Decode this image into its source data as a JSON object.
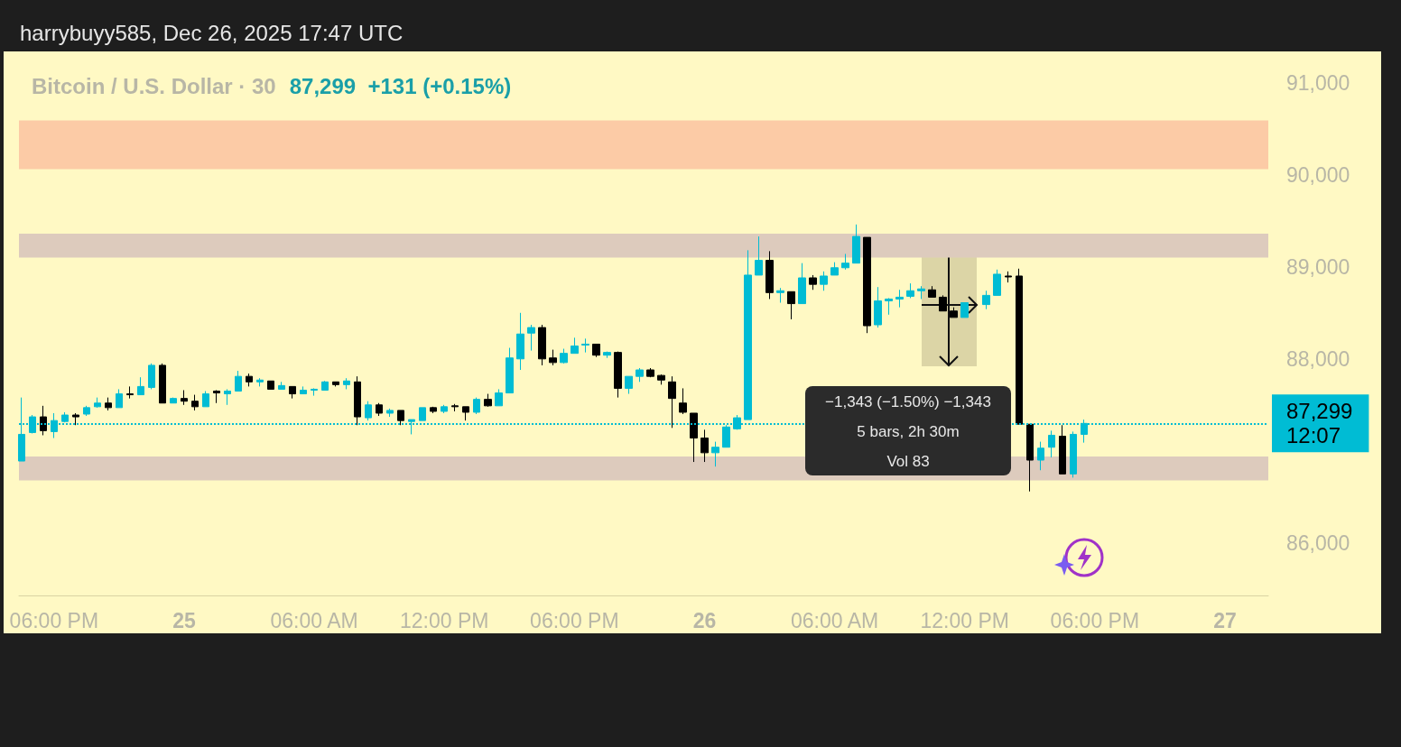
{
  "chart_data": {
    "type": "candlestick",
    "title": "Bitcoin / U.S. Dollar · 30",
    "subtitle": "87,299  +131 (+0.15%)",
    "annotations": [
      "harrybuyy585, Dec 26, 2025 17:47 UTC",
      "12:07",
      "−1,343 (−1.50%) −1,343",
      "5 bars, 2h 30m",
      "Vol 83"
    ],
    "x": [
      "2025-12-24T16:30",
      "2025-12-24T17:00",
      "2025-12-24T17:30",
      "2025-12-24T18:00",
      "2025-12-24T18:30",
      "2025-12-24T19:00",
      "2025-12-24T19:30",
      "2025-12-24T20:00",
      "2025-12-24T20:30",
      "2025-12-24T21:00",
      "2025-12-24T21:30",
      "2025-12-24T22:00",
      "2025-12-24T22:30",
      "2025-12-24T23:00",
      "2025-12-24T23:30",
      "2025-12-25T00:00",
      "2025-12-25T00:30",
      "2025-12-25T01:00",
      "2025-12-25T01:30",
      "2025-12-25T02:00",
      "2025-12-25T02:30",
      "2025-12-25T03:00",
      "2025-12-25T03:30",
      "2025-12-25T04:00",
      "2025-12-25T04:30",
      "2025-12-25T05:00",
      "2025-12-25T05:30",
      "2025-12-25T06:00",
      "2025-12-25T06:30",
      "2025-12-25T07:00",
      "2025-12-25T07:30",
      "2025-12-25T08:00",
      "2025-12-25T08:30",
      "2025-12-25T09:00",
      "2025-12-25T09:30",
      "2025-12-25T10:00",
      "2025-12-25T10:30",
      "2025-12-25T11:00",
      "2025-12-25T11:30",
      "2025-12-25T12:00",
      "2025-12-25T12:30",
      "2025-12-25T13:00",
      "2025-12-25T13:30",
      "2025-12-25T14:00",
      "2025-12-25T14:30",
      "2025-12-25T15:00",
      "2025-12-25T15:30",
      "2025-12-25T16:00",
      "2025-12-25T16:30",
      "2025-12-25T17:00",
      "2025-12-25T17:30",
      "2025-12-25T18:00",
      "2025-12-25T18:30",
      "2025-12-25T19:00",
      "2025-12-25T19:30",
      "2025-12-25T20:00",
      "2025-12-25T20:30",
      "2025-12-25T21:00",
      "2025-12-25T21:30",
      "2025-12-25T22:00",
      "2025-12-25T22:30",
      "2025-12-25T23:00",
      "2025-12-25T23:30",
      "2025-12-26T00:00",
      "2025-12-26T00:30",
      "2025-12-26T01:00",
      "2025-12-26T01:30",
      "2025-12-26T02:00",
      "2025-12-26T02:30",
      "2025-12-26T03:00",
      "2025-12-26T03:30",
      "2025-12-26T04:00",
      "2025-12-26T04:30",
      "2025-12-26T05:00",
      "2025-12-26T05:30",
      "2025-12-26T06:00",
      "2025-12-26T06:30",
      "2025-12-26T07:00",
      "2025-12-26T07:30",
      "2025-12-26T08:00",
      "2025-12-26T08:30",
      "2025-12-26T09:00",
      "2025-12-26T09:30",
      "2025-12-26T10:00",
      "2025-12-26T10:30",
      "2025-12-26T11:00",
      "2025-12-26T11:30",
      "2025-12-26T12:00",
      "2025-12-26T13:00",
      "2025-12-26T13:30",
      "2025-12-26T14:00",
      "2025-12-26T14:30",
      "2025-12-26T15:00",
      "2025-12-26T15:30",
      "2025-12-26T16:00",
      "2025-12-26T16:30",
      "2025-12-26T17:00",
      "2025-12-26T17:30"
    ],
    "ohlc": [
      [
        86890,
        87580,
        86890,
        87180
      ],
      [
        87200,
        87390,
        87190,
        87370
      ],
      [
        87370,
        87490,
        87170,
        87220
      ],
      [
        87210,
        87410,
        87140,
        87330
      ],
      [
        87320,
        87420,
        87310,
        87390
      ],
      [
        87390,
        87410,
        87280,
        87370
      ],
      [
        87400,
        87490,
        87380,
        87470
      ],
      [
        87480,
        87580,
        87470,
        87520
      ],
      [
        87520,
        87580,
        87440,
        87470
      ],
      [
        87470,
        87670,
        87470,
        87620
      ],
      [
        87620,
        87700,
        87570,
        87610
      ],
      [
        87610,
        87800,
        87610,
        87700
      ],
      [
        87690,
        87950,
        87670,
        87930
      ],
      [
        87930,
        87950,
        87520,
        87520
      ],
      [
        87520,
        87580,
        87520,
        87570
      ],
      [
        87570,
        87660,
        87500,
        87540
      ],
      [
        87540,
        87610,
        87440,
        87480
      ],
      [
        87480,
        87650,
        87480,
        87620
      ],
      [
        87650,
        87660,
        87520,
        87630
      ],
      [
        87620,
        87670,
        87500,
        87650
      ],
      [
        87650,
        87870,
        87650,
        87810
      ],
      [
        87810,
        87840,
        87700,
        87750
      ],
      [
        87750,
        87790,
        87700,
        87770
      ],
      [
        87760,
        87760,
        87670,
        87670
      ],
      [
        87670,
        87750,
        87670,
        87710
      ],
      [
        87700,
        87700,
        87570,
        87620
      ],
      [
        87620,
        87700,
        87620,
        87660
      ],
      [
        87660,
        87680,
        87600,
        87670
      ],
      [
        87660,
        87760,
        87660,
        87750
      ],
      [
        87750,
        87750,
        87700,
        87720
      ],
      [
        87720,
        87790,
        87670,
        87760
      ],
      [
        87750,
        87810,
        87280,
        87370
      ],
      [
        87360,
        87540,
        87330,
        87500
      ],
      [
        87500,
        87520,
        87380,
        87410
      ],
      [
        87410,
        87460,
        87370,
        87440
      ],
      [
        87440,
        87440,
        87280,
        87330
      ],
      [
        87320,
        87340,
        87180,
        87340
      ],
      [
        87330,
        87470,
        87330,
        87470
      ],
      [
        87470,
        87480,
        87410,
        87430
      ],
      [
        87430,
        87500,
        87410,
        87480
      ],
      [
        87490,
        87510,
        87430,
        87480
      ],
      [
        87480,
        87480,
        87330,
        87420
      ],
      [
        87420,
        87580,
        87400,
        87560
      ],
      [
        87560,
        87620,
        87480,
        87490
      ],
      [
        87490,
        87670,
        87490,
        87630
      ],
      [
        87630,
        88120,
        87630,
        88010
      ],
      [
        88000,
        88500,
        87880,
        88270
      ],
      [
        88280,
        88370,
        88090,
        88340
      ],
      [
        88340,
        88370,
        87930,
        88000
      ],
      [
        88010,
        88100,
        87930,
        87960
      ],
      [
        87960,
        88110,
        87950,
        88060
      ],
      [
        88060,
        88230,
        88060,
        88140
      ],
      [
        88150,
        88220,
        88070,
        88160
      ],
      [
        88160,
        88160,
        88020,
        88040
      ],
      [
        88040,
        88080,
        88010,
        88070
      ],
      [
        88070,
        88080,
        87580,
        87680
      ],
      [
        87680,
        87810,
        87620,
        87810
      ],
      [
        87810,
        87900,
        87750,
        87880
      ],
      [
        87880,
        87900,
        87800,
        87810
      ],
      [
        87820,
        87830,
        87720,
        87770
      ],
      [
        87750,
        87810,
        87250,
        87570
      ],
      [
        87520,
        87680,
        87400,
        87420
      ],
      [
        87410,
        87410,
        86880,
        87140
      ],
      [
        87140,
        87230,
        86880,
        86980
      ],
      [
        86980,
        87100,
        86830,
        87040
      ],
      [
        87040,
        87280,
        87040,
        87260
      ],
      [
        87240,
        87390,
        87230,
        87360
      ],
      [
        87340,
        89180,
        87340,
        88910
      ],
      [
        88910,
        89330,
        88910,
        89070
      ],
      [
        89070,
        89170,
        88650,
        88720
      ],
      [
        88720,
        88770,
        88610,
        88740
      ],
      [
        88730,
        88730,
        88430,
        88600
      ],
      [
        88600,
        89040,
        88600,
        88880
      ],
      [
        88880,
        88910,
        88750,
        88810
      ],
      [
        88810,
        88950,
        88740,
        88900
      ],
      [
        88910,
        89050,
        88910,
        88990
      ],
      [
        88990,
        89140,
        88970,
        89040
      ],
      [
        89040,
        89460,
        89040,
        89330
      ],
      [
        89320,
        89320,
        88280,
        88360
      ],
      [
        88370,
        88780,
        88340,
        88630
      ],
      [
        88630,
        88660,
        88480,
        88650
      ],
      [
        88650,
        88750,
        88560,
        88670
      ],
      [
        88680,
        88820,
        88660,
        88740
      ],
      [
        88740,
        88790,
        88650,
        88760
      ],
      [
        88750,
        88790,
        88670,
        88670
      ],
      [
        88670,
        88690,
        88520,
        88520
      ],
      [
        88520,
        88560,
        88450,
        88450
      ],
      [
        88450,
        88610,
        88450,
        88610
      ],
      [
        88590,
        88740,
        88540,
        88690
      ],
      [
        88690,
        88970,
        88690,
        88920
      ],
      [
        88900,
        88950,
        88830,
        88890
      ],
      [
        88900,
        88980,
        87290,
        87290
      ],
      [
        87290,
        87290,
        86560,
        86900
      ],
      [
        86900,
        87100,
        86790,
        87030
      ],
      [
        87040,
        87220,
        86930,
        87170
      ],
      [
        87160,
        87280,
        86750,
        86750
      ],
      [
        86750,
        87210,
        86710,
        87180
      ],
      [
        87180,
        87340,
        87090,
        87299
      ]
    ],
    "colors": [
      "#00bcd4",
      "#00bcd4",
      "#000000",
      "#00bcd4",
      "#00bcd4",
      "#000000",
      "#00bcd4",
      "#00bcd4",
      "#000000",
      "#00bcd4",
      "#000000",
      "#00bcd4",
      "#00bcd4",
      "#000000",
      "#00bcd4",
      "#000000",
      "#000000",
      "#00bcd4",
      "#000000",
      "#00bcd4",
      "#00bcd4",
      "#000000",
      "#00bcd4",
      "#000000",
      "#00bcd4",
      "#000000",
      "#00bcd4",
      "#00bcd4",
      "#00bcd4",
      "#000000",
      "#00bcd4",
      "#000000",
      "#00bcd4",
      "#000000",
      "#00bcd4",
      "#000000",
      "#00bcd4",
      "#00bcd4",
      "#000000",
      "#00bcd4",
      "#000000",
      "#000000",
      "#00bcd4",
      "#000000",
      "#00bcd4",
      "#00bcd4",
      "#00bcd4",
      "#00bcd4",
      "#000000",
      "#000000",
      "#00bcd4",
      "#00bcd4",
      "#00bcd4",
      "#000000",
      "#00bcd4",
      "#000000",
      "#00bcd4",
      "#00bcd4",
      "#000000",
      "#000000",
      "#000000",
      "#000000",
      "#000000",
      "#000000",
      "#00bcd4",
      "#00bcd4",
      "#00bcd4",
      "#00bcd4",
      "#00bcd4",
      "#000000",
      "#00bcd4",
      "#000000",
      "#00bcd4",
      "#000000",
      "#00bcd4",
      "#00bcd4",
      "#00bcd4",
      "#00bcd4",
      "#000000",
      "#00bcd4",
      "#00bcd4",
      "#00bcd4",
      "#00bcd4",
      "#00bcd4",
      "#000000",
      "#000000",
      "#000000",
      "#00bcd4",
      "#00bcd4",
      "#00bcd4",
      "#000000",
      "#000000",
      "#000000",
      "#00bcd4",
      "#00bcd4",
      "#000000",
      "#00bcd4",
      "#00bcd4"
    ],
    "xlim": [
      "2025-12-24T16:23",
      "2025-12-27T02:00"
    ],
    "xticks": [
      {
        "value": "2025-12-24T18:00",
        "label": "06:00 PM"
      },
      {
        "value": "2025-12-25T00:00",
        "label": "25"
      },
      {
        "value": "2025-12-25T06:00",
        "label": "06:00 AM"
      },
      {
        "value": "2025-12-25T12:00",
        "label": "12:00 PM"
      },
      {
        "value": "2025-12-25T18:00",
        "label": "06:00 PM"
      },
      {
        "value": "2025-12-26T00:00",
        "label": "26"
      },
      {
        "value": "2025-12-26T06:00",
        "label": "06:00 AM"
      },
      {
        "value": "2025-12-26T12:00",
        "label": "12:00 PM"
      },
      {
        "value": "2025-12-26T18:00",
        "label": "06:00 PM"
      },
      {
        "value": "2025-12-27T00:00",
        "label": "27"
      }
    ],
    "ylim": [
      85430,
      91340
    ],
    "yticks": [
      {
        "value": 86000,
        "label": "86,000"
      },
      {
        "value": 88000,
        "label": "88,000"
      },
      {
        "value": 89000,
        "label": "89,000"
      },
      {
        "value": 90000,
        "label": "90,000"
      },
      {
        "value": 91000,
        "label": "91,000"
      }
    ],
    "ref_lines": [
      {
        "axis": "y",
        "value": 87299,
        "label": "87,299",
        "color": "#00bcd4",
        "line_style": "dotted"
      }
    ],
    "bands": [
      {
        "axis": "y",
        "from": 90060,
        "to": 90590,
        "color": "#fccba6"
      },
      {
        "axis": "y",
        "from": 89100,
        "to": 89360,
        "color": "#ddcbbd"
      },
      {
        "axis": "y",
        "from": 86680,
        "to": 86940,
        "color": "#ddcbbd"
      }
    ],
    "grid": false
  }
}
